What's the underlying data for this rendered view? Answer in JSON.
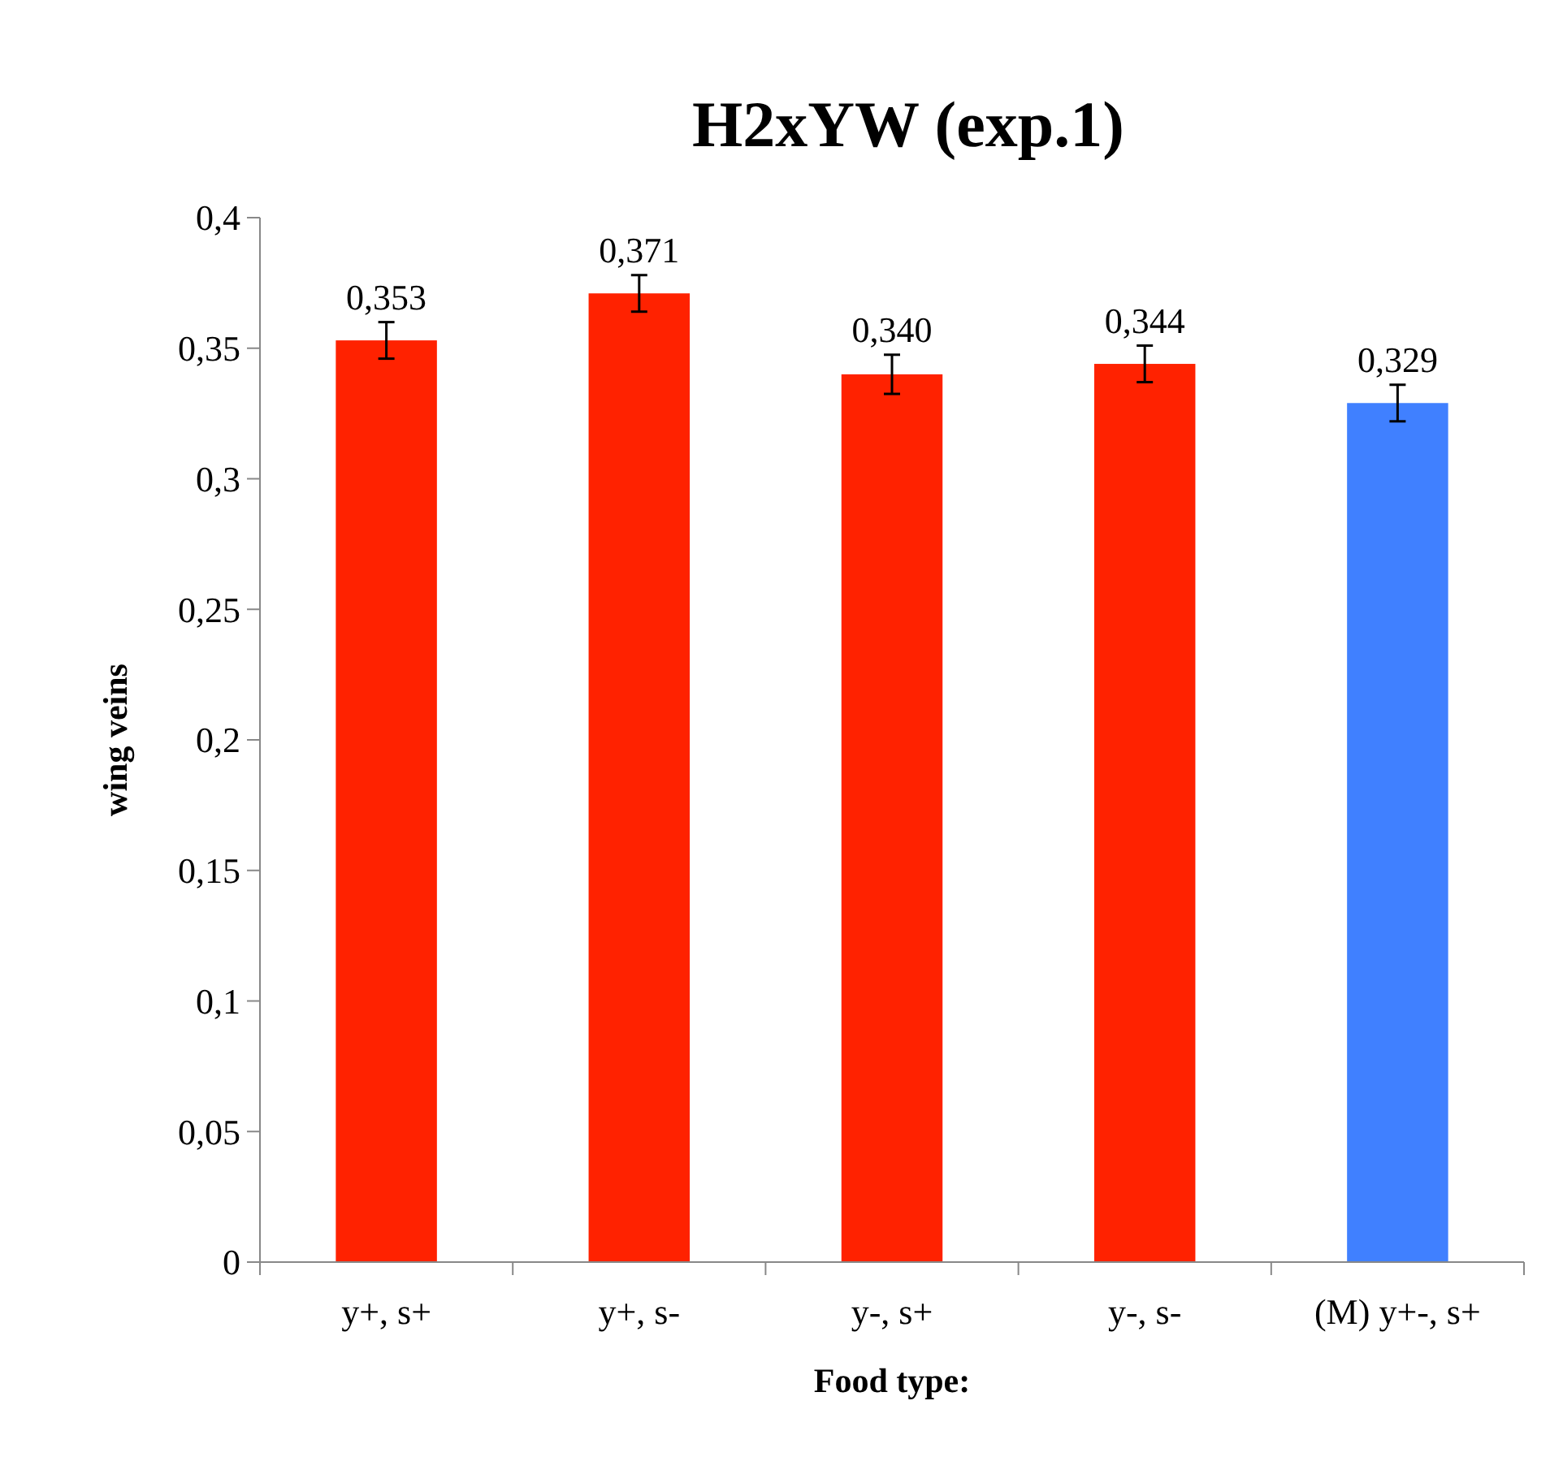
{
  "chart_data": {
    "type": "bar",
    "title": "H2xYW (exp.1)",
    "xlabel": "Food type:",
    "ylabel": "wing veins",
    "categories": [
      "y+, s+",
      "y+, s-",
      "y-, s+",
      "y-, s-",
      "(M) y+-, s+"
    ],
    "values": [
      0.353,
      0.371,
      0.34,
      0.344,
      0.329
    ],
    "colors": [
      "#ff2200",
      "#ff2200",
      "#ff2200",
      "#ff2200",
      "#4080ff"
    ],
    "errors": [
      0.007,
      0.007,
      0.0075,
      0.007,
      0.007
    ],
    "value_labels": [
      "0,353",
      "0,371",
      "0,340",
      "0,344",
      "0,329"
    ],
    "ylim": [
      0,
      0.4
    ],
    "yticks": [
      {
        "value": 0,
        "label": "0"
      },
      {
        "value": 0.05,
        "label": "0,05"
      },
      {
        "value": 0.1,
        "label": "0,1"
      },
      {
        "value": 0.15,
        "label": "0,15"
      },
      {
        "value": 0.2,
        "label": "0,2"
      },
      {
        "value": 0.25,
        "label": "0,25"
      },
      {
        "value": 0.3,
        "label": "0,3"
      },
      {
        "value": 0.35,
        "label": "0,35"
      },
      {
        "value": 0.4,
        "label": "0,4"
      }
    ],
    "grid": false
  }
}
